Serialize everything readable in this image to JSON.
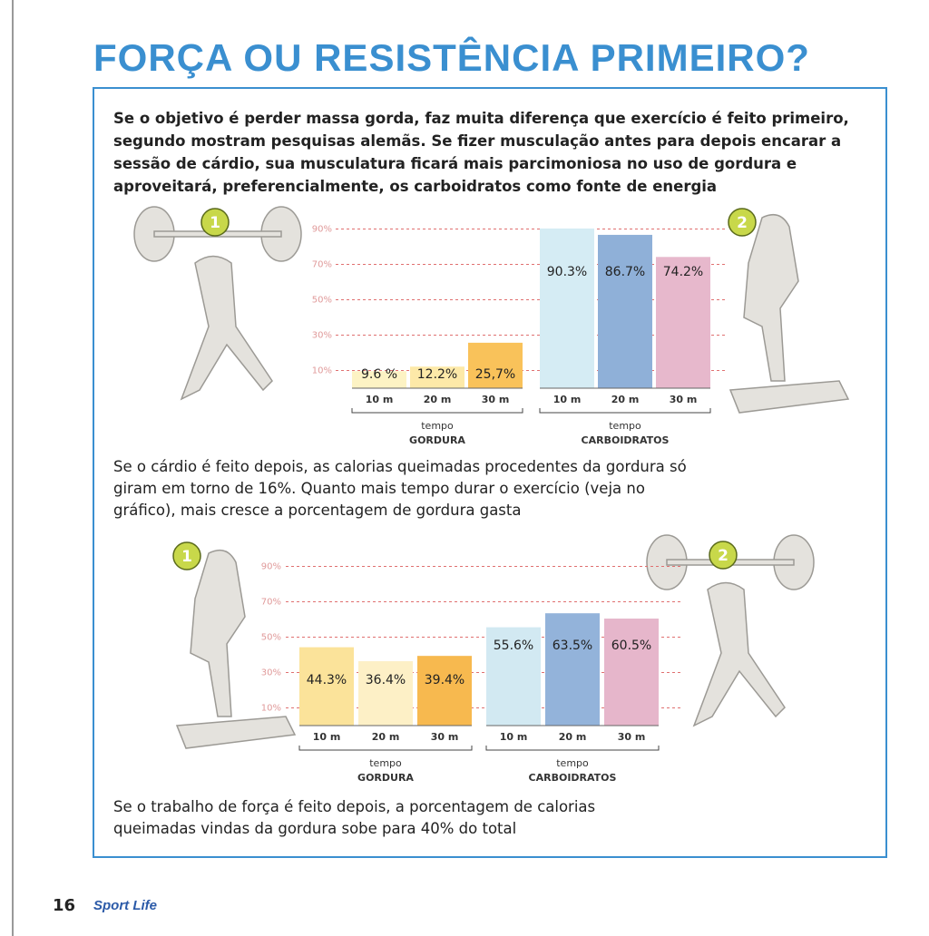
{
  "title": "FORÇA OU RESISTÊNCIA PRIMEIRO?",
  "intro": "Se o objetivo é perder massa gorda, faz muita diferença que exercício é feito primeiro, segundo mostram pesquisas alemãs. Se fizer musculação antes para depois encarar a sessão de cárdio, sua musculatura ficará mais parcimoniosa no uso de gordura e aproveitará, preferencialmente, os carboidratos como fonte de energia",
  "caption_1": "Se o cárdio é feito depois, as calorias queimadas procedentes da gordura só giram em torno de 16%. Quanto mais tempo durar o exercício (veja no gráfico), mais cresce a porcentagem de gordura gasta",
  "caption_2": "Se o trabalho de força é feito depois, a porcentagem de calorias queimadas vindas da gordura sobe para 40% do total",
  "footer": {
    "page_number": "16",
    "brand": "Sport Life"
  },
  "chart_data": [
    {
      "type": "bar",
      "badges": [
        "1",
        "2"
      ],
      "categories": [
        "10 m",
        "20 m",
        "30 m",
        "10 m",
        "20 m",
        "30 m"
      ],
      "groups": [
        {
          "axis_title": "tempo",
          "name": "GORDURA"
        },
        {
          "axis_title": "tempo",
          "name": "CARBOIDRATOS"
        }
      ],
      "values": [
        9.6,
        12.2,
        25.7,
        90.3,
        86.7,
        74.2
      ],
      "value_labels": [
        "9.6 %",
        "12.2%",
        "25,7%",
        "90.3%",
        "86.7%",
        "74.2%"
      ],
      "colors": [
        "#fdf3c4",
        "#fde9a8",
        "#f9c25a",
        "#d5ecf4",
        "#8fb0d8",
        "#e7b8cc"
      ],
      "ylim": [
        0,
        100
      ],
      "yticks": [
        {
          "value": 10,
          "label": "10%"
        },
        {
          "value": 30,
          "label": "30%"
        },
        {
          "value": 50,
          "label": "50%"
        },
        {
          "value": 70,
          "label": "70%"
        },
        {
          "value": 90,
          "label": "90%"
        }
      ],
      "grid": true
    },
    {
      "type": "bar",
      "badges": [
        "1",
        "2"
      ],
      "categories": [
        "10 m",
        "20 m",
        "30 m",
        "10 m",
        "20 m",
        "30 m"
      ],
      "groups": [
        {
          "axis_title": "tempo",
          "name": "GORDURA"
        },
        {
          "axis_title": "tempo",
          "name": "CARBOIDRATOS"
        }
      ],
      "values": [
        44.3,
        36.4,
        39.4,
        55.6,
        63.5,
        60.5
      ],
      "value_labels": [
        "44.3%",
        "36.4%",
        "39.4%",
        "55.6%",
        "63.5%",
        "60.5%"
      ],
      "colors": [
        "#fbe39a",
        "#fdf0c6",
        "#f7b94f",
        "#d2e9f2",
        "#93b3da",
        "#e6b6cb"
      ],
      "ylim": [
        0,
        100
      ],
      "yticks": [
        {
          "value": 10,
          "label": "10%"
        },
        {
          "value": 30,
          "label": "30%"
        },
        {
          "value": 50,
          "label": "50%"
        },
        {
          "value": 70,
          "label": "70%"
        },
        {
          "value": 90,
          "label": "90%"
        }
      ],
      "grid": true
    }
  ]
}
